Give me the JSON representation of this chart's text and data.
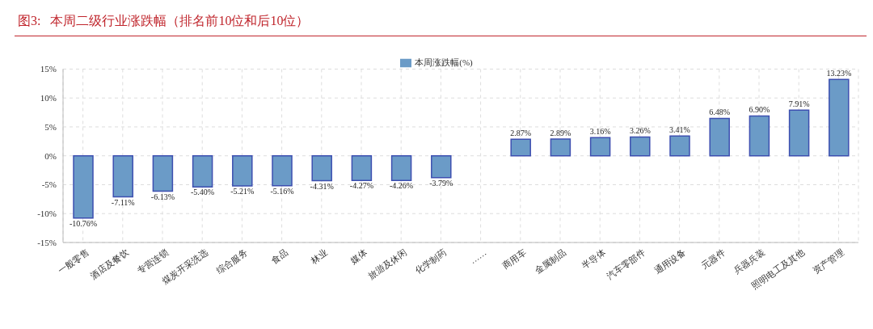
{
  "chart_data": {
    "type": "bar",
    "title": "图3:   本周二级行业涨跌幅（排名前10位和后10位）",
    "categories": [
      "一般零售",
      "酒店及餐饮",
      "专营连锁",
      "煤炭开采洗选",
      "综合服务",
      "食品",
      "林业",
      "媒体",
      "旅游及休闲",
      "化学制药",
      "……",
      "商用车",
      "金属制品",
      "半导体",
      "汽车零部件",
      "通用设备",
      "元器件",
      "兵器兵装",
      "照明电工及其他",
      "资产管理"
    ],
    "series": [
      {
        "name": "本周涨跌幅(%)",
        "color": "#6b9bc7",
        "values": [
          -10.76,
          -7.11,
          -6.13,
          -5.4,
          -5.21,
          -5.16,
          -4.31,
          -4.27,
          -4.26,
          -3.79,
          null,
          2.87,
          2.89,
          3.16,
          3.26,
          3.41,
          6.48,
          6.9,
          7.91,
          13.23
        ],
        "value_labels": [
          "-10.76%",
          "-7.11%",
          "-6.13%",
          "-5.40%",
          "-5.21%",
          "-5.16%",
          "-4.31%",
          "-4.27%",
          "-4.26%",
          "-3.79%",
          null,
          "2.87%",
          "2.89%",
          "3.16%",
          "3.26%",
          "3.41%",
          "6.48%",
          "6.90%",
          "7.91%",
          "13.23%"
        ]
      }
    ],
    "ylim": [
      -15,
      15
    ],
    "yticks": [
      {
        "value": -15,
        "label": "-15%"
      },
      {
        "value": -10,
        "label": "-10%"
      },
      {
        "value": -5,
        "label": "-5%"
      },
      {
        "value": 0,
        "label": "0%"
      },
      {
        "value": 5,
        "label": "5%"
      },
      {
        "value": 10,
        "label": "10%"
      },
      {
        "value": 15,
        "label": "15%"
      }
    ],
    "grid": true,
    "legend": "top"
  }
}
